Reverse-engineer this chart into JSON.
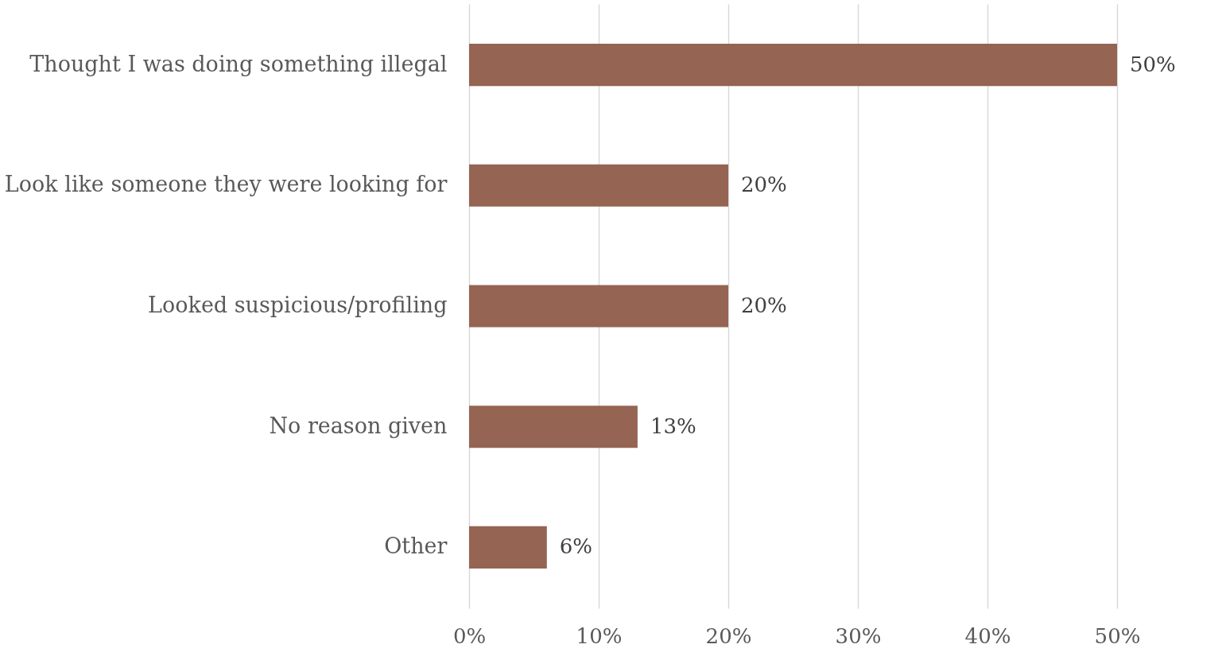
{
  "chart_data": {
    "type": "bar",
    "orientation": "horizontal",
    "categories": [
      "Thought I was doing something illegal",
      "Look like someone they were looking for",
      "Looked suspicious/profiling",
      "No reason given",
      "Other"
    ],
    "values": [
      50,
      20,
      20,
      13,
      6
    ],
    "value_labels": [
      "50%",
      "20%",
      "20%",
      "13%",
      "6%"
    ],
    "color": "#956452",
    "xlim": [
      0,
      50
    ],
    "xticks": [
      {
        "value": 0,
        "label": "0%"
      },
      {
        "value": 10,
        "label": "10%"
      },
      {
        "value": 20,
        "label": "20%"
      },
      {
        "value": 30,
        "label": "30%"
      },
      {
        "value": 40,
        "label": "40%"
      },
      {
        "value": 50,
        "label": "50%"
      }
    ],
    "grid": "x"
  }
}
